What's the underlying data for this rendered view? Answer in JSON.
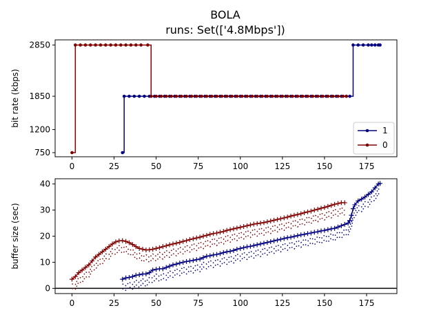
{
  "title": "BOLA",
  "subtitle": "runs: Set(['4.8Mbps'])",
  "chart_data": [
    {
      "type": "line",
      "ylabel": "bit rate (kbps)",
      "xlim": [
        -10,
        193
      ],
      "ylim": [
        670,
        2950
      ],
      "xticks": [
        0,
        25,
        50,
        75,
        100,
        125,
        150,
        175
      ],
      "yticks": [
        750,
        1200,
        1850,
        2850
      ],
      "legend": "lower-right",
      "series": [
        {
          "name": "1",
          "color": "#000080",
          "step": true,
          "points": [
            [
              30,
              750
            ],
            [
              31,
              1850
            ],
            [
              34,
              1850
            ],
            [
              37,
              1850
            ],
            [
              40,
              1850
            ],
            [
              43,
              1850
            ],
            [
              46,
              1850
            ],
            [
              49,
              1850
            ],
            [
              52,
              1850
            ],
            [
              55,
              1850
            ],
            [
              58,
              1850
            ],
            [
              61,
              1850
            ],
            [
              64,
              1850
            ],
            [
              67,
              1850
            ],
            [
              70,
              1850
            ],
            [
              73,
              1850
            ],
            [
              76,
              1850
            ],
            [
              79,
              1850
            ],
            [
              82,
              1850
            ],
            [
              85,
              1850
            ],
            [
              88,
              1850
            ],
            [
              91,
              1850
            ],
            [
              94,
              1850
            ],
            [
              97,
              1850
            ],
            [
              100,
              1850
            ],
            [
              103,
              1850
            ],
            [
              106,
              1850
            ],
            [
              109,
              1850
            ],
            [
              112,
              1850
            ],
            [
              115,
              1850
            ],
            [
              118,
              1850
            ],
            [
              121,
              1850
            ],
            [
              124,
              1850
            ],
            [
              127,
              1850
            ],
            [
              130,
              1850
            ],
            [
              133,
              1850
            ],
            [
              136,
              1850
            ],
            [
              139,
              1850
            ],
            [
              142,
              1850
            ],
            [
              145,
              1850
            ],
            [
              148,
              1850
            ],
            [
              151,
              1850
            ],
            [
              154,
              1850
            ],
            [
              157,
              1850
            ],
            [
              160,
              1850
            ],
            [
              163,
              1850
            ],
            [
              165,
              1850
            ],
            [
              167,
              2850
            ],
            [
              170,
              2850
            ],
            [
              173,
              2850
            ],
            [
              176,
              2850
            ],
            [
              178,
              2850
            ],
            [
              180,
              2850
            ],
            [
              182,
              2850
            ],
            [
              183,
              2850
            ]
          ]
        },
        {
          "name": "0",
          "color": "#800000",
          "step": true,
          "points": [
            [
              0,
              750
            ],
            [
              2,
              2850
            ],
            [
              5,
              2850
            ],
            [
              8,
              2850
            ],
            [
              11,
              2850
            ],
            [
              14,
              2850
            ],
            [
              17,
              2850
            ],
            [
              20,
              2850
            ],
            [
              23,
              2850
            ],
            [
              26,
              2850
            ],
            [
              29,
              2850
            ],
            [
              32,
              2850
            ],
            [
              35,
              2850
            ],
            [
              38,
              2850
            ],
            [
              41,
              2850
            ],
            [
              45,
              2850
            ],
            [
              47,
              1850
            ],
            [
              50,
              1850
            ],
            [
              53,
              1850
            ],
            [
              56,
              1850
            ],
            [
              59,
              1850
            ],
            [
              62,
              1850
            ],
            [
              65,
              1850
            ],
            [
              68,
              1850
            ],
            [
              71,
              1850
            ],
            [
              74,
              1850
            ],
            [
              77,
              1850
            ],
            [
              80,
              1850
            ],
            [
              83,
              1850
            ],
            [
              86,
              1850
            ],
            [
              89,
              1850
            ],
            [
              92,
              1850
            ],
            [
              95,
              1850
            ],
            [
              98,
              1850
            ],
            [
              101,
              1850
            ],
            [
              104,
              1850
            ],
            [
              107,
              1850
            ],
            [
              110,
              1850
            ],
            [
              113,
              1850
            ],
            [
              116,
              1850
            ],
            [
              119,
              1850
            ],
            [
              122,
              1850
            ],
            [
              125,
              1850
            ],
            [
              128,
              1850
            ],
            [
              131,
              1850
            ],
            [
              134,
              1850
            ],
            [
              137,
              1850
            ],
            [
              140,
              1850
            ],
            [
              143,
              1850
            ],
            [
              146,
              1850
            ],
            [
              149,
              1850
            ],
            [
              152,
              1850
            ],
            [
              155,
              1850
            ],
            [
              158,
              1850
            ],
            [
              161,
              1850
            ],
            [
              163,
              1850
            ]
          ]
        }
      ]
    },
    {
      "type": "line",
      "ylabel": "buffer size (sec)",
      "xlim": [
        -10,
        193
      ],
      "ylim": [
        -2,
        42
      ],
      "xticks": [
        0,
        25,
        50,
        75,
        100,
        125,
        150,
        175
      ],
      "yticks": [
        0,
        10,
        20,
        30,
        40
      ],
      "hline": 0,
      "series": [
        {
          "name": "1",
          "color": "#000080",
          "points": [
            [
              30,
              3.5
            ],
            [
              32,
              4
            ],
            [
              34,
              4.2
            ],
            [
              36,
              4.5
            ],
            [
              38,
              5
            ],
            [
              40,
              5.2
            ],
            [
              42,
              5.5
            ],
            [
              44,
              5.5
            ],
            [
              46,
              6
            ],
            [
              48,
              7
            ],
            [
              50,
              7.3
            ],
            [
              52,
              7.5
            ],
            [
              54,
              7.5
            ],
            [
              56,
              8
            ],
            [
              58,
              8.5
            ],
            [
              60,
              9
            ],
            [
              62,
              9.3
            ],
            [
              64,
              9.7
            ],
            [
              66,
              10
            ],
            [
              68,
              10.3
            ],
            [
              70,
              10.5
            ],
            [
              72,
              10.7
            ],
            [
              74,
              11
            ],
            [
              76,
              11.2
            ],
            [
              78,
              11.8
            ],
            [
              80,
              12.3
            ],
            [
              82,
              12.5
            ],
            [
              84,
              12.8
            ],
            [
              86,
              13
            ],
            [
              88,
              13.3
            ],
            [
              90,
              13.7
            ],
            [
              92,
              14
            ],
            [
              94,
              14.2
            ],
            [
              96,
              14.5
            ],
            [
              98,
              15
            ],
            [
              100,
              15.3
            ],
            [
              102,
              15.6
            ],
            [
              104,
              15.9
            ],
            [
              106,
              16.1
            ],
            [
              108,
              16.4
            ],
            [
              110,
              16.7
            ],
            [
              112,
              17
            ],
            [
              114,
              17.3
            ],
            [
              116,
              17.6
            ],
            [
              118,
              17.9
            ],
            [
              120,
              18.2
            ],
            [
              122,
              18.5
            ],
            [
              124,
              18.8
            ],
            [
              126,
              19.1
            ],
            [
              128,
              19.4
            ],
            [
              130,
              19.6
            ],
            [
              132,
              19.9
            ],
            [
              134,
              20.2
            ],
            [
              136,
              20.5
            ],
            [
              138,
              20.7
            ],
            [
              140,
              21
            ],
            [
              142,
              21.2
            ],
            [
              144,
              21.5
            ],
            [
              146,
              21.7
            ],
            [
              148,
              22
            ],
            [
              150,
              22.2
            ],
            [
              152,
              22.5
            ],
            [
              154,
              22.8
            ],
            [
              156,
              23
            ],
            [
              158,
              23.5
            ],
            [
              160,
              24
            ],
            [
              162,
              24.5
            ],
            [
              164,
              25
            ],
            [
              165,
              26
            ],
            [
              166,
              28
            ],
            [
              167,
              30.5
            ],
            [
              168,
              32
            ],
            [
              170,
              33.5
            ],
            [
              172,
              34.2
            ],
            [
              174,
              35
            ],
            [
              176,
              36
            ],
            [
              178,
              37
            ],
            [
              180,
              38.5
            ],
            [
              182,
              40
            ],
            [
              183,
              40.2
            ]
          ],
          "dotted_offsets": [
            -1.8,
            -3.6
          ]
        },
        {
          "name": "0",
          "color": "#800000",
          "points": [
            [
              0,
              3.5
            ],
            [
              2,
              4.5
            ],
            [
              4,
              6
            ],
            [
              6,
              7
            ],
            [
              8,
              8
            ],
            [
              10,
              9
            ],
            [
              12,
              10.5
            ],
            [
              14,
              12
            ],
            [
              16,
              13
            ],
            [
              18,
              14
            ],
            [
              20,
              15
            ],
            [
              22,
              16
            ],
            [
              24,
              17
            ],
            [
              26,
              17.8
            ],
            [
              28,
              18.2
            ],
            [
              30,
              18.3
            ],
            [
              32,
              18
            ],
            [
              34,
              17.5
            ],
            [
              36,
              16.8
            ],
            [
              38,
              16
            ],
            [
              40,
              15.3
            ],
            [
              42,
              15
            ],
            [
              44,
              14.7
            ],
            [
              46,
              14.8
            ],
            [
              48,
              15
            ],
            [
              50,
              15.3
            ],
            [
              52,
              15.6
            ],
            [
              54,
              16
            ],
            [
              56,
              16.3
            ],
            [
              58,
              16.7
            ],
            [
              60,
              17
            ],
            [
              62,
              17.3
            ],
            [
              64,
              17.6
            ],
            [
              66,
              18
            ],
            [
              68,
              18.3
            ],
            [
              70,
              18.7
            ],
            [
              72,
              19
            ],
            [
              74,
              19.3
            ],
            [
              76,
              19.6
            ],
            [
              78,
              20
            ],
            [
              80,
              20.3
            ],
            [
              82,
              20.7
            ],
            [
              84,
              21
            ],
            [
              86,
              21.2
            ],
            [
              88,
              21.5
            ],
            [
              90,
              21.8
            ],
            [
              92,
              22.2
            ],
            [
              94,
              22.5
            ],
            [
              96,
              22.8
            ],
            [
              98,
              23.1
            ],
            [
              100,
              23.4
            ],
            [
              102,
              23.7
            ],
            [
              104,
              24
            ],
            [
              106,
              24.3
            ],
            [
              108,
              24.6
            ],
            [
              110,
              24.8
            ],
            [
              112,
              25
            ],
            [
              114,
              25.2
            ],
            [
              116,
              25.5
            ],
            [
              118,
              25.8
            ],
            [
              120,
              26.1
            ],
            [
              122,
              26.4
            ],
            [
              124,
              26.7
            ],
            [
              126,
              27
            ],
            [
              128,
              27.3
            ],
            [
              130,
              27.7
            ],
            [
              132,
              28
            ],
            [
              134,
              28.3
            ],
            [
              136,
              28.6
            ],
            [
              138,
              29
            ],
            [
              140,
              29.3
            ],
            [
              142,
              29.6
            ],
            [
              144,
              30
            ],
            [
              146,
              30.3
            ],
            [
              148,
              30.7
            ],
            [
              150,
              31
            ],
            [
              152,
              31.4
            ],
            [
              154,
              31.8
            ],
            [
              156,
              32.2
            ],
            [
              158,
              32.5
            ],
            [
              160,
              32.8
            ],
            [
              162,
              32.8
            ]
          ],
          "dotted_offsets": [
            -1.8,
            -3.6
          ]
        }
      ]
    }
  ]
}
